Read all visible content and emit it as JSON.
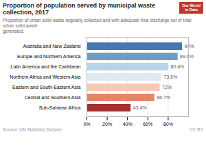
{
  "chart_data": {
    "type": "bar",
    "orientation": "horizontal",
    "title": "Proportion of population served by municipal waste collection, 2017",
    "subtitle": "Proportion of urban solid waste regularly collected and with adequate final discharge out of total urban solid waste\ngenerated.",
    "source": "Source: UN Statistics Division",
    "annotations": [
      "CC BY",
      "Our World",
      "in Data"
    ],
    "categories": [
      "Australia and New Zealand",
      "Europe and Northern America",
      "Latin America and the Caribbean",
      "Northern Africa and Western Asia",
      "Eastern and South-Eastern Asia",
      "Central and Southern Asia",
      "Sub-Saharan Africa"
    ],
    "values": [
      94.0,
      89.6,
      80.4,
      73.5,
      72.0,
      66.7,
      43.4
    ],
    "value_labels": [
      "94%",
      "89.6%",
      "80.4%",
      "73.5%",
      "72%",
      "66.7%",
      "43.4%"
    ],
    "data_labels": true,
    "colors": [
      "#4777b0",
      "#6b9ec5",
      "#b8d4e6",
      "#ddeaf3",
      "#f5cbb5",
      "#e88468",
      "#a63030"
    ],
    "xlim": [
      0,
      100
    ],
    "xticks": [
      {
        "value": 0,
        "label": "0%"
      },
      {
        "value": 20,
        "label": "20%"
      },
      {
        "value": 40,
        "label": "40%"
      },
      {
        "value": 60,
        "label": "60%"
      },
      {
        "value": 80,
        "label": "80%"
      }
    ],
    "grid": true
  }
}
